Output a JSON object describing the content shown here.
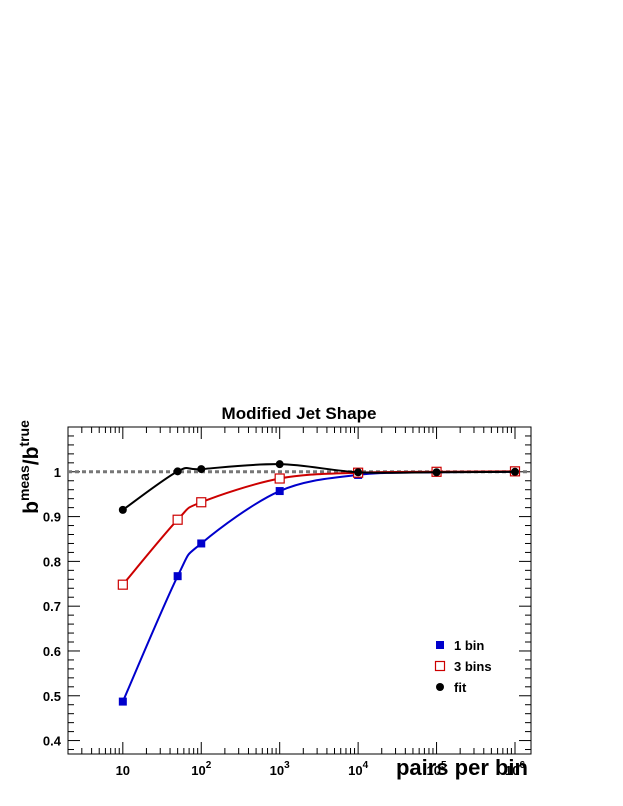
{
  "chart_data": {
    "type": "scatter",
    "title": "Modified Jet Shape",
    "xlabel": "pairs per bin",
    "ylabel": {
      "base": "b",
      "num_sub": "0",
      "num_sup": "meas",
      "slash": "/",
      "den_sub": "0",
      "den_sup": "true"
    },
    "x_scale": "log",
    "xlim": [
      2,
      1600000
    ],
    "ylim": [
      0.37,
      1.1
    ],
    "x_tick_labels": [
      {
        "x": 10,
        "base": "10",
        "exp": ""
      },
      {
        "x": 100,
        "base": "10",
        "exp": "2"
      },
      {
        "x": 1000,
        "base": "10",
        "exp": "3"
      },
      {
        "x": 10000,
        "base": "10",
        "exp": "4"
      },
      {
        "x": 100000,
        "base": "10",
        "exp": "5"
      },
      {
        "x": 1000000,
        "base": "10",
        "exp": "6"
      }
    ],
    "y_ticks": [
      {
        "y": 0.4,
        "label": "0.4"
      },
      {
        "y": 0.5,
        "label": "0.5"
      },
      {
        "y": 0.6,
        "label": "0.6"
      },
      {
        "y": 0.7,
        "label": "0.7"
      },
      {
        "y": 0.8,
        "label": "0.8"
      },
      {
        "y": 0.9,
        "label": "0.9"
      },
      {
        "y": 1.0,
        "label": "1"
      }
    ],
    "reference_line": {
      "y": 1.0,
      "style": "dashed",
      "color": "#777777"
    },
    "legend": {
      "position": "bottom-right"
    },
    "series": [
      {
        "name": "1 bin",
        "marker": "filled-square",
        "color": "#0000cc",
        "x": [
          10,
          50,
          100,
          1000,
          10000,
          100000,
          1000000
        ],
        "y": [
          0.487,
          0.767,
          0.84,
          0.957,
          0.993,
          0.999,
          1.0
        ]
      },
      {
        "name": "3 bins",
        "marker": "open-square",
        "color": "#cc0000",
        "x": [
          10,
          50,
          100,
          1000,
          10000,
          100000,
          1000000
        ],
        "y": [
          0.748,
          0.893,
          0.932,
          0.985,
          0.998,
          1.0,
          1.001
        ]
      },
      {
        "name": "fit",
        "marker": "filled-circle",
        "color": "#000000",
        "x": [
          10,
          50,
          100,
          1000,
          10000,
          100000,
          1000000
        ],
        "y": [
          0.915,
          1.001,
          1.006,
          1.017,
          0.999,
          0.999,
          1.0
        ]
      }
    ]
  }
}
